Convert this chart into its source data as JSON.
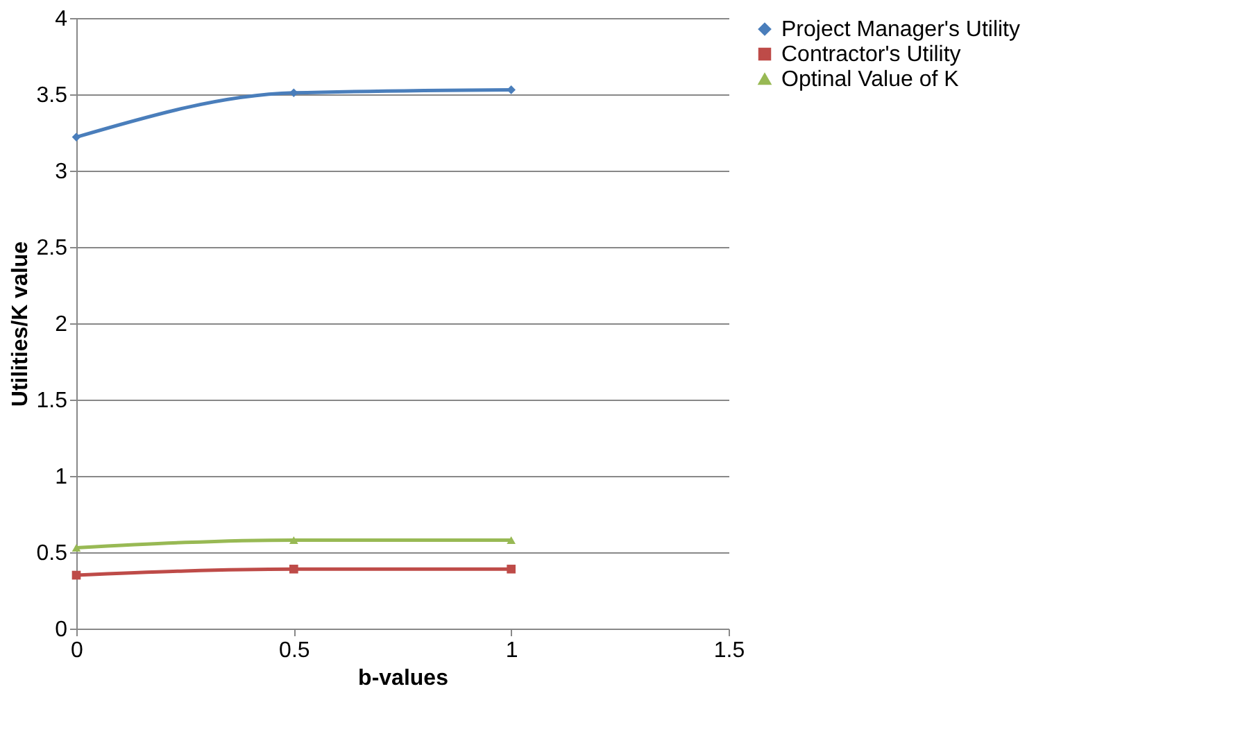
{
  "chart_data": {
    "type": "line",
    "xlabel": "b-values",
    "ylabel": "Utilities/K value",
    "x": [
      0,
      0.5,
      1
    ],
    "series": [
      {
        "name": "Project Manager's Utility",
        "color": "#4a7ebb",
        "marker": "diamond",
        "values": [
          3.22,
          3.51,
          3.53
        ]
      },
      {
        "name": "Contractor's Utility",
        "color": "#be4b48",
        "marker": "square",
        "values": [
          0.35,
          0.39,
          0.39
        ]
      },
      {
        "name": "Optinal Value of K",
        "color": "#98b954",
        "marker": "triangle",
        "values": [
          0.53,
          0.58,
          0.58
        ]
      }
    ],
    "xlim": [
      0,
      1.5
    ],
    "xticks": [
      0,
      0.5,
      1,
      1.5
    ],
    "ylim": [
      0,
      4
    ],
    "yticks": [
      0,
      0.5,
      1,
      1.5,
      2,
      2.5,
      3,
      3.5,
      4
    ],
    "grid": "y",
    "legend": "right",
    "line_style": "solid"
  }
}
